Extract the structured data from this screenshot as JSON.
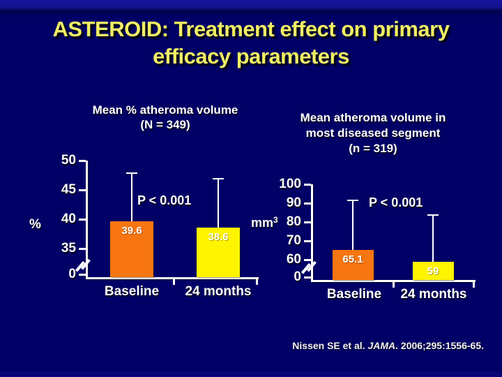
{
  "slide": {
    "title_line1": "ASTEROID: Treatment effect on primary",
    "title_line2": "efficacy parameters",
    "citation": {
      "prefix": "Nissen SE et al. ",
      "journal": "JAMA",
      "suffix": ". 2006;295:1556-65."
    },
    "colors": {
      "background": "#000066",
      "title_text": "#F0EF65",
      "bar_orange": "#F87611",
      "bar_yellow": "#FEF400",
      "chart_text": "#FFFFFF"
    }
  },
  "chart_data": [
    {
      "type": "bar",
      "title_lines": [
        "Mean % atheroma volume",
        "(N = 349)"
      ],
      "ylabel": "%",
      "categories": [
        "Baseline",
        "24 months"
      ],
      "values": [
        39.6,
        38.6
      ],
      "value_labels": [
        "39.6",
        "38.6"
      ],
      "error_top": [
        48,
        47
      ],
      "bar_colors": [
        "#F87611",
        "#FEF400"
      ],
      "annotation": "P < 0.001",
      "yticks": [
        50,
        45,
        40,
        35,
        0
      ],
      "axis_break": true,
      "ylim": [
        0,
        50
      ],
      "legend": "none",
      "grid": false
    },
    {
      "type": "bar",
      "title_lines": [
        "Mean atheroma volume in",
        "most diseased segment",
        "(n = 319)"
      ],
      "ylabel": "mm",
      "ylabel_sup": "3",
      "categories": [
        "Baseline",
        "24 months"
      ],
      "values": [
        65.1,
        59
      ],
      "value_labels": [
        "65.1",
        "59"
      ],
      "error_top": [
        92,
        84
      ],
      "bar_colors": [
        "#F87611",
        "#FEF400"
      ],
      "annotation": "P < 0.001",
      "yticks": [
        100,
        90,
        80,
        70,
        60,
        0
      ],
      "axis_break": true,
      "ylim": [
        0,
        100
      ],
      "legend": "none",
      "grid": false
    }
  ]
}
